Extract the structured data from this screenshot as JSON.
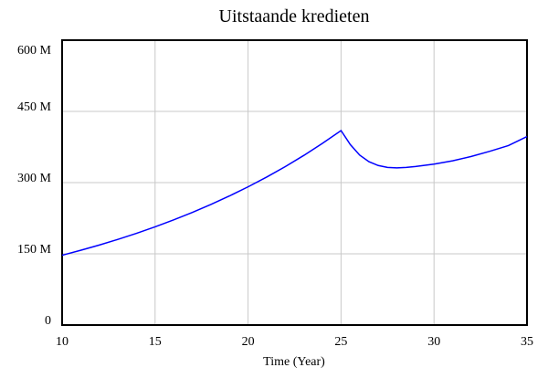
{
  "chart_data": {
    "type": "line",
    "title": "Uitstaande kredieten",
    "x_label": "Time (Year)",
    "x": [
      10,
      11,
      12,
      13,
      14,
      15,
      16,
      17,
      18,
      19,
      20,
      21,
      22,
      23,
      24,
      25,
      25.5,
      26,
      26.5,
      27,
      27.5,
      28,
      28.5,
      29,
      30,
      31,
      32,
      33,
      34,
      35
    ],
    "series": [
      {
        "name": "Uitstaande kredieten",
        "color": "#0000ff",
        "values": [
          147,
          157.4,
          168.5,
          180.4,
          193.2,
          206.8,
          221.5,
          237.1,
          253.9,
          271.9,
          291.1,
          311.7,
          333.7,
          357.3,
          382.6,
          409.6,
          380,
          358,
          344,
          336,
          332,
          331,
          332,
          334,
          339,
          346,
          355,
          366,
          378,
          397
        ]
      }
    ],
    "xlim": [
      10,
      35
    ],
    "xticks": [
      10,
      15,
      20,
      25,
      30,
      35
    ],
    "ylim": [
      0,
      600
    ],
    "yticks": [
      0,
      {
        "value": 150,
        "label": "150 M"
      },
      {
        "value": 300,
        "label": "300 M"
      },
      {
        "value": 450,
        "label": "450 M"
      },
      {
        "value": 600,
        "label": "600 M"
      }
    ],
    "grid": true
  }
}
